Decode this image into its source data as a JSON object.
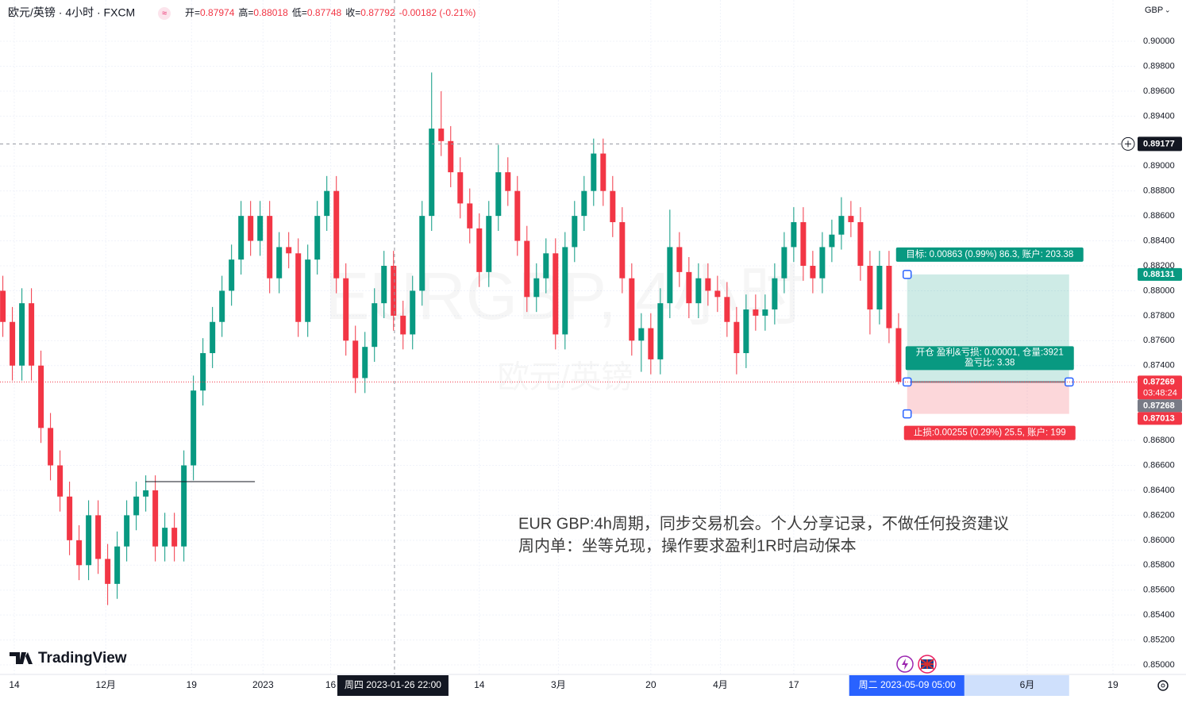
{
  "chart_data": {
    "type": "candlestick",
    "title": "欧元/英镑 · 4小时 · FXCM",
    "header_ohlc": [
      {
        "label": "开=",
        "value": "0.87974"
      },
      {
        "label": "高=",
        "value": "0.88018"
      },
      {
        "label": "低=",
        "value": "0.87748"
      },
      {
        "label": "收=",
        "value": "0.87792"
      }
    ],
    "header_change": "-0.00182 (-0.21%)",
    "currency": "GBP",
    "logo": "TradingView",
    "watermark": [
      "EURGBP, 4小时",
      "欧元/英镑"
    ],
    "annotation": [
      "EUR GBP:4h周期，同步交易机会。个人分享记录，不做任何投资建议",
      "周内单：坐等兑现，操作要求盈利1R时启动保本"
    ],
    "up_color": "#089981",
    "down_color": "#f23645",
    "open": [
      0.88,
      0.8775,
      0.874,
      0.879,
      0.874,
      0.869,
      0.866,
      0.8635,
      0.86,
      0.858,
      0.862,
      0.8585,
      0.8565,
      0.8595,
      0.862,
      0.8635,
      0.864,
      0.8595,
      0.861,
      0.8595,
      0.866,
      0.872,
      0.875,
      0.8775,
      0.88,
      0.8825,
      0.886,
      0.884,
      0.886,
      0.881,
      0.8835,
      0.883,
      0.8775,
      0.8825,
      0.886,
      0.888,
      0.881,
      0.876,
      0.873,
      0.8755,
      0.879,
      0.882,
      0.878,
      0.8765,
      0.88,
      0.886,
      0.893,
      0.892,
      0.8895,
      0.887,
      0.885,
      0.8815,
      0.886,
      0.8895,
      0.888,
      0.884,
      0.8795,
      0.881,
      0.883,
      0.8765,
      0.8835,
      0.886,
      0.888,
      0.891,
      0.888,
      0.8855,
      0.881,
      0.876,
      0.877,
      0.8745,
      0.879,
      0.8835,
      0.8815,
      0.879,
      0.881,
      0.88,
      0.8795,
      0.8775,
      0.875,
      0.8785,
      0.878,
      0.8785,
      0.881,
      0.8835,
      0.8855,
      0.882,
      0.881,
      0.8835,
      0.8845,
      0.886,
      0.8855,
      0.882,
      0.8785,
      0.882,
      0.877
    ],
    "high": [
      0.8812,
      0.8787,
      0.8802,
      0.8802,
      0.8752,
      0.8702,
      0.8672,
      0.8647,
      0.8612,
      0.8632,
      0.8632,
      0.8597,
      0.8607,
      0.8632,
      0.8647,
      0.8652,
      0.8652,
      0.8622,
      0.8622,
      0.8672,
      0.8732,
      0.8762,
      0.8787,
      0.8812,
      0.8837,
      0.8872,
      0.8872,
      0.8872,
      0.8872,
      0.8847,
      0.8847,
      0.8842,
      0.8837,
      0.8872,
      0.8892,
      0.8892,
      0.8822,
      0.8772,
      0.8767,
      0.8802,
      0.8832,
      0.8832,
      0.8792,
      0.8812,
      0.8872,
      0.8975,
      0.896,
      0.8932,
      0.8907,
      0.8882,
      0.8862,
      0.8872,
      0.8917,
      0.8907,
      0.8892,
      0.8852,
      0.8822,
      0.8842,
      0.8842,
      0.8847,
      0.8872,
      0.8892,
      0.8922,
      0.8922,
      0.8892,
      0.8867,
      0.8822,
      0.8782,
      0.8782,
      0.8802,
      0.8865,
      0.8847,
      0.8827,
      0.8822,
      0.8822,
      0.8812,
      0.8807,
      0.8787,
      0.8797,
      0.8797,
      0.8797,
      0.8822,
      0.8847,
      0.8867,
      0.8867,
      0.8832,
      0.8847,
      0.8857,
      0.8875,
      0.8872,
      0.8867,
      0.8832,
      0.8832,
      0.8832,
      0.8782
    ],
    "low": [
      0.8763,
      0.8728,
      0.8728,
      0.8728,
      0.8678,
      0.8648,
      0.8623,
      0.8588,
      0.8568,
      0.8568,
      0.8573,
      0.8548,
      0.8553,
      0.8583,
      0.8608,
      0.8623,
      0.8583,
      0.8583,
      0.8583,
      0.8583,
      0.8648,
      0.8708,
      0.8738,
      0.8763,
      0.8788,
      0.8813,
      0.8828,
      0.8828,
      0.8798,
      0.8798,
      0.8818,
      0.8763,
      0.8763,
      0.8813,
      0.8848,
      0.8798,
      0.8748,
      0.8718,
      0.8718,
      0.8743,
      0.8778,
      0.8768,
      0.8753,
      0.8753,
      0.8788,
      0.8848,
      0.8908,
      0.8883,
      0.8858,
      0.8838,
      0.8803,
      0.8803,
      0.8848,
      0.8868,
      0.8828,
      0.8783,
      0.8783,
      0.8798,
      0.8753,
      0.8753,
      0.8823,
      0.8848,
      0.8868,
      0.8868,
      0.8843,
      0.8798,
      0.8748,
      0.8735,
      0.8733,
      0.8733,
      0.8778,
      0.8803,
      0.8778,
      0.8778,
      0.8788,
      0.8783,
      0.8763,
      0.8733,
      0.8738,
      0.8768,
      0.8768,
      0.8773,
      0.8798,
      0.8823,
      0.8808,
      0.8798,
      0.8798,
      0.8823,
      0.8833,
      0.8843,
      0.8808,
      0.8765,
      0.8773,
      0.8758,
      0.8725
    ],
    "close": [
      0.8775,
      0.874,
      0.879,
      0.874,
      0.869,
      0.866,
      0.8635,
      0.86,
      0.858,
      0.862,
      0.8585,
      0.8565,
      0.8595,
      0.862,
      0.8635,
      0.864,
      0.8595,
      0.861,
      0.8595,
      0.866,
      0.872,
      0.875,
      0.8775,
      0.88,
      0.8825,
      0.886,
      0.884,
      0.886,
      0.881,
      0.8835,
      0.883,
      0.8775,
      0.8825,
      0.886,
      0.888,
      0.881,
      0.876,
      0.873,
      0.8755,
      0.879,
      0.882,
      0.878,
      0.8765,
      0.88,
      0.886,
      0.893,
      0.892,
      0.8895,
      0.887,
      0.885,
      0.8815,
      0.886,
      0.8895,
      0.888,
      0.884,
      0.8795,
      0.881,
      0.883,
      0.8765,
      0.8835,
      0.886,
      0.888,
      0.891,
      0.888,
      0.8855,
      0.881,
      0.876,
      0.877,
      0.8745,
      0.879,
      0.8835,
      0.8815,
      0.879,
      0.881,
      0.88,
      0.8795,
      0.8775,
      0.875,
      0.8785,
      0.878,
      0.8785,
      0.881,
      0.8835,
      0.8855,
      0.882,
      0.881,
      0.8835,
      0.8845,
      0.886,
      0.8855,
      0.882,
      0.8785,
      0.882,
      0.877,
      0.8727
    ],
    "xlim": [
      -0.3,
      119
    ],
    "ylim": [
      0.84924,
      0.90331
    ],
    "grid": true,
    "yticks": [
      {
        "value": 0.85,
        "label": "0.85000"
      },
      {
        "value": 0.852,
        "label": "0.85200"
      },
      {
        "value": 0.854,
        "label": "0.85400"
      },
      {
        "value": 0.856,
        "label": "0.85600"
      },
      {
        "value": 0.858,
        "label": "0.85800"
      },
      {
        "value": 0.86,
        "label": "0.86000"
      },
      {
        "value": 0.862,
        "label": "0.86200"
      },
      {
        "value": 0.864,
        "label": "0.86400"
      },
      {
        "value": 0.866,
        "label": "0.86600"
      },
      {
        "value": 0.868,
        "label": "0.86800"
      },
      {
        "value": 0.874,
        "label": "0.87400"
      },
      {
        "value": 0.876,
        "label": "0.87600"
      },
      {
        "value": 0.878,
        "label": "0.87800"
      },
      {
        "value": 0.88,
        "label": "0.88000"
      },
      {
        "value": 0.882,
        "label": "0.88200"
      },
      {
        "value": 0.884,
        "label": "0.88400"
      },
      {
        "value": 0.886,
        "label": "0.88600"
      },
      {
        "value": 0.888,
        "label": "0.88800"
      },
      {
        "value": 0.89,
        "label": "0.89000"
      },
      {
        "value": 0.894,
        "label": "0.89400"
      },
      {
        "value": 0.896,
        "label": "0.89600"
      },
      {
        "value": 0.898,
        "label": "0.89800"
      },
      {
        "value": 0.9,
        "label": "0.90000"
      }
    ],
    "xticks": [
      {
        "value": 1.2,
        "label": "14"
      },
      {
        "value": 10.8,
        "label": "12月"
      },
      {
        "value": 19.8,
        "label": "19"
      },
      {
        "value": 27.3,
        "label": "2023"
      },
      {
        "value": 34.4,
        "label": "16"
      },
      {
        "value": 50,
        "label": "14"
      },
      {
        "value": 58.3,
        "label": "3月"
      },
      {
        "value": 68,
        "label": "20"
      },
      {
        "value": 75.3,
        "label": "4月"
      },
      {
        "value": 83,
        "label": "17"
      },
      {
        "value": 107.5,
        "label": "6月"
      },
      {
        "value": 116.5,
        "label": "19"
      }
    ],
    "crosshair": {
      "x": 41.1,
      "y": 0.89177,
      "x_label": "周四 2023-01-26  22:00"
    },
    "range": {
      "x": [
        94.9,
        111.9
      ],
      "x_label": "周二 2023-05-09  05:00"
    },
    "drawn_line": {
      "y": 0.8647,
      "x": [
        14.95,
        26.45
      ]
    },
    "position": {
      "x": [
        94.9,
        111.9
      ],
      "entry": 0.87269,
      "target": 0.88131,
      "stop": 0.87013,
      "target_label": "目标: 0.00863 (0.99%) 86.3, 账户: 203.38",
      "entry_label": [
        "开仓 盈利&亏损: 0.00001, 仓量:3921",
        "盈亏比: 3.38"
      ],
      "stop_label": "止损:0.00255 (0.29%) 25.5, 账户: 199"
    },
    "price_markers": [
      {
        "value": 0.88131,
        "color": "#089981"
      },
      {
        "value": 0.87269,
        "color": "#f23645",
        "countdown": "03:48:24"
      },
      {
        "value": 0.87268,
        "color": "#787b86"
      },
      {
        "value": 0.87013,
        "color": "#f23645"
      }
    ]
  }
}
